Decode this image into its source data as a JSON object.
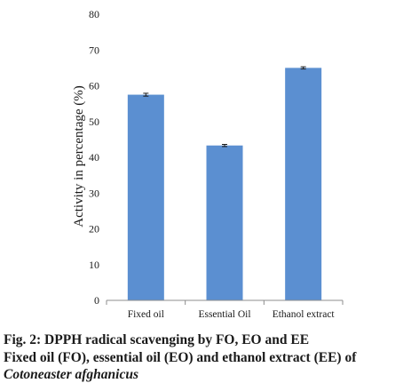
{
  "chart_data": {
    "type": "bar",
    "categories": [
      "Fixed oil",
      "Essential Oil",
      "Ethanol extract"
    ],
    "values": [
      57.5,
      43.3,
      65.0
    ],
    "errors": [
      0.4,
      0.3,
      0.3
    ],
    "ylabel": "Activity in percentage (%)",
    "xlabel": "",
    "ylim": [
      0,
      80
    ],
    "yticks": [
      0,
      10,
      20,
      30,
      40,
      50,
      60,
      70,
      80
    ],
    "grid": false,
    "bar_color": "#5b8fd1"
  },
  "caption": {
    "line1": "Fig. 2: DPPH radical scavenging by FO, EO and EE",
    "line2": "Fixed oil (FO), essential oil (EO) and ethanol extract (EE) of",
    "line3": "Cotoneaster afghanicus"
  }
}
